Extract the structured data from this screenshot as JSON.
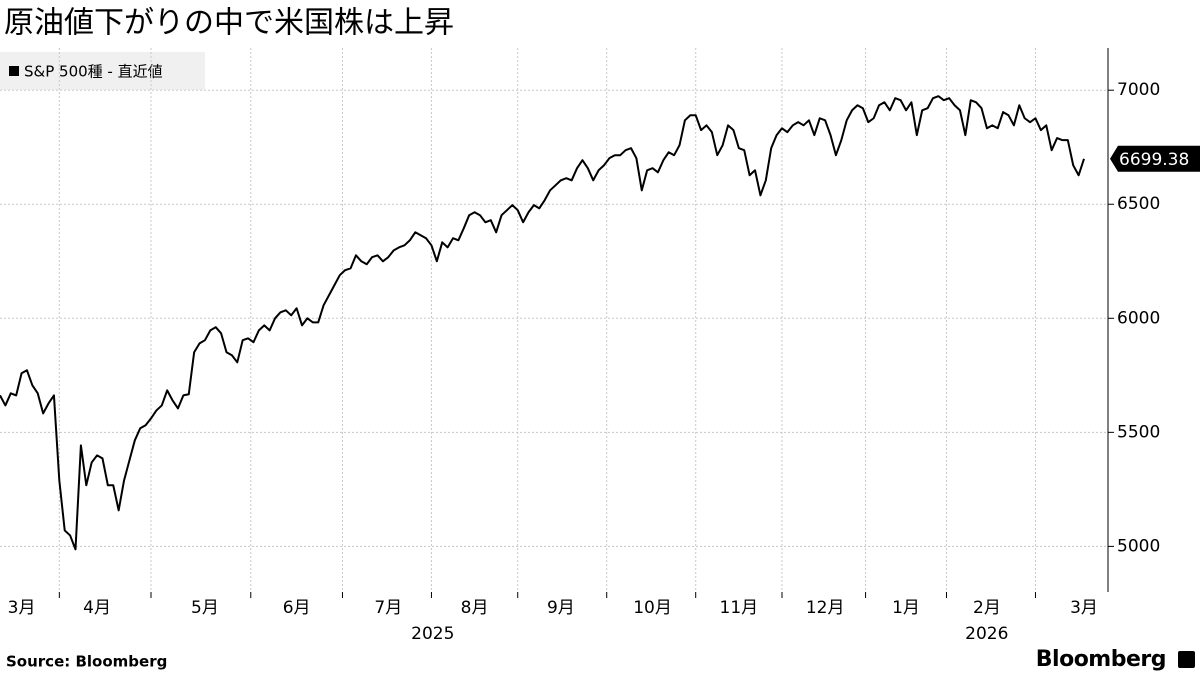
{
  "chart_data": {
    "type": "line",
    "title": "原油値下がりの中で米国株は上昇",
    "source": "Source:  Bloomberg",
    "brand": "Bloomberg",
    "categories": [
      null,
      null,
      null,
      null,
      "3月",
      null,
      null,
      null,
      null,
      null,
      null,
      null,
      null,
      null,
      null,
      null,
      null,
      null,
      "4月",
      null,
      null,
      null,
      null,
      null,
      null,
      null,
      null,
      null,
      null,
      null,
      null,
      null,
      null,
      null,
      null,
      null,
      null,
      null,
      "5月",
      null,
      null,
      null,
      null,
      null,
      null,
      null,
      null,
      null,
      null,
      null,
      null,
      null,
      null,
      null,
      null,
      "6月",
      null,
      null,
      null,
      null,
      null,
      null,
      null,
      null,
      null,
      null,
      null,
      null,
      null,
      null,
      null,
      null,
      "7月",
      null,
      null,
      null,
      null,
      null,
      null,
      null,
      null,
      null,
      null,
      null,
      null,
      null,
      null,
      null,
      "8月",
      null,
      null,
      null,
      null,
      null,
      null,
      null,
      null,
      null,
      null,
      null,
      null,
      null,
      null,
      null,
      "9月",
      null,
      null,
      null,
      null,
      null,
      null,
      null,
      null,
      null,
      null,
      null,
      null,
      null,
      null,
      null,
      null,
      "10月",
      null,
      null,
      null,
      null,
      null,
      null,
      null,
      null,
      null,
      null,
      null,
      null,
      null,
      null,
      null,
      "11月",
      null,
      null,
      null,
      null,
      null,
      null,
      null,
      null,
      null,
      null,
      null,
      null,
      null,
      null,
      null,
      "12月",
      null,
      null,
      null,
      null,
      null,
      null,
      null,
      null,
      null,
      null,
      null,
      null,
      null,
      null,
      "1月",
      null,
      null,
      null,
      null,
      null,
      null,
      null,
      null,
      null,
      null,
      null,
      null,
      null,
      null,
      "2月",
      null,
      null,
      null,
      null,
      null,
      null,
      null,
      null,
      null,
      null,
      null,
      null,
      null,
      null,
      null,
      null,
      null,
      "3月"
    ],
    "x_year_labels": [
      "2025",
      "2026"
    ],
    "series": [
      {
        "name": "S&P 500種 - 直近値",
        "color": "#000000",
        "values": [
          5662,
          5618,
          5671,
          5662,
          5759,
          5772,
          5706,
          5671,
          5583,
          5627,
          5662,
          5289,
          5070,
          5048,
          4987,
          5443,
          5268,
          5368,
          5399,
          5386,
          5268,
          5268,
          5158,
          5289,
          5377,
          5465,
          5518,
          5531,
          5561,
          5596,
          5618,
          5684,
          5640,
          5605,
          5662,
          5667,
          5851,
          5890,
          5904,
          5947,
          5961,
          5934,
          5851,
          5838,
          5807,
          5904,
          5912,
          5895,
          5947,
          5969,
          5947,
          6000,
          6026,
          6035,
          6013,
          6044,
          5969,
          6000,
          5982,
          5982,
          6057,
          6101,
          6145,
          6189,
          6211,
          6219,
          6276,
          6250,
          6237,
          6268,
          6276,
          6250,
          6268,
          6298,
          6311,
          6320,
          6342,
          6377,
          6364,
          6351,
          6320,
          6250,
          6333,
          6311,
          6351,
          6342,
          6395,
          6452,
          6465,
          6452,
          6421,
          6430,
          6377,
          6452,
          6474,
          6496,
          6474,
          6421,
          6465,
          6496,
          6482,
          6518,
          6561,
          6583,
          6605,
          6614,
          6605,
          6658,
          6693,
          6658,
          6605,
          6649,
          6671,
          6702,
          6715,
          6715,
          6737,
          6746,
          6702,
          6561,
          6649,
          6658,
          6640,
          6693,
          6728,
          6715,
          6759,
          6868,
          6890,
          6890,
          6825,
          6846,
          6816,
          6715,
          6759,
          6846,
          6825,
          6746,
          6737,
          6627,
          6649,
          6539,
          6605,
          6746,
          6803,
          6833,
          6816,
          6846,
          6860,
          6846,
          6868,
          6803,
          6877,
          6868,
          6803,
          6715,
          6781,
          6868,
          6912,
          6934,
          6921,
          6860,
          6877,
          6934,
          6947,
          6912,
          6965,
          6956,
          6912,
          6947,
          6803,
          6912,
          6921,
          6965,
          6974,
          6956,
          6965,
          6934,
          6912,
          6803,
          6956,
          6947,
          6921,
          6833,
          6846,
          6833,
          6904,
          6890,
          6846,
          6934,
          6877,
          6860,
          6877,
          6825,
          6846,
          6737,
          6790,
          6781,
          6781,
          6671,
          6627,
          6699.38
        ]
      }
    ],
    "ylim": [
      4800,
      7185
    ],
    "yticks": [
      5000,
      5500,
      6000,
      6500,
      7000
    ],
    "grid": true
  }
}
